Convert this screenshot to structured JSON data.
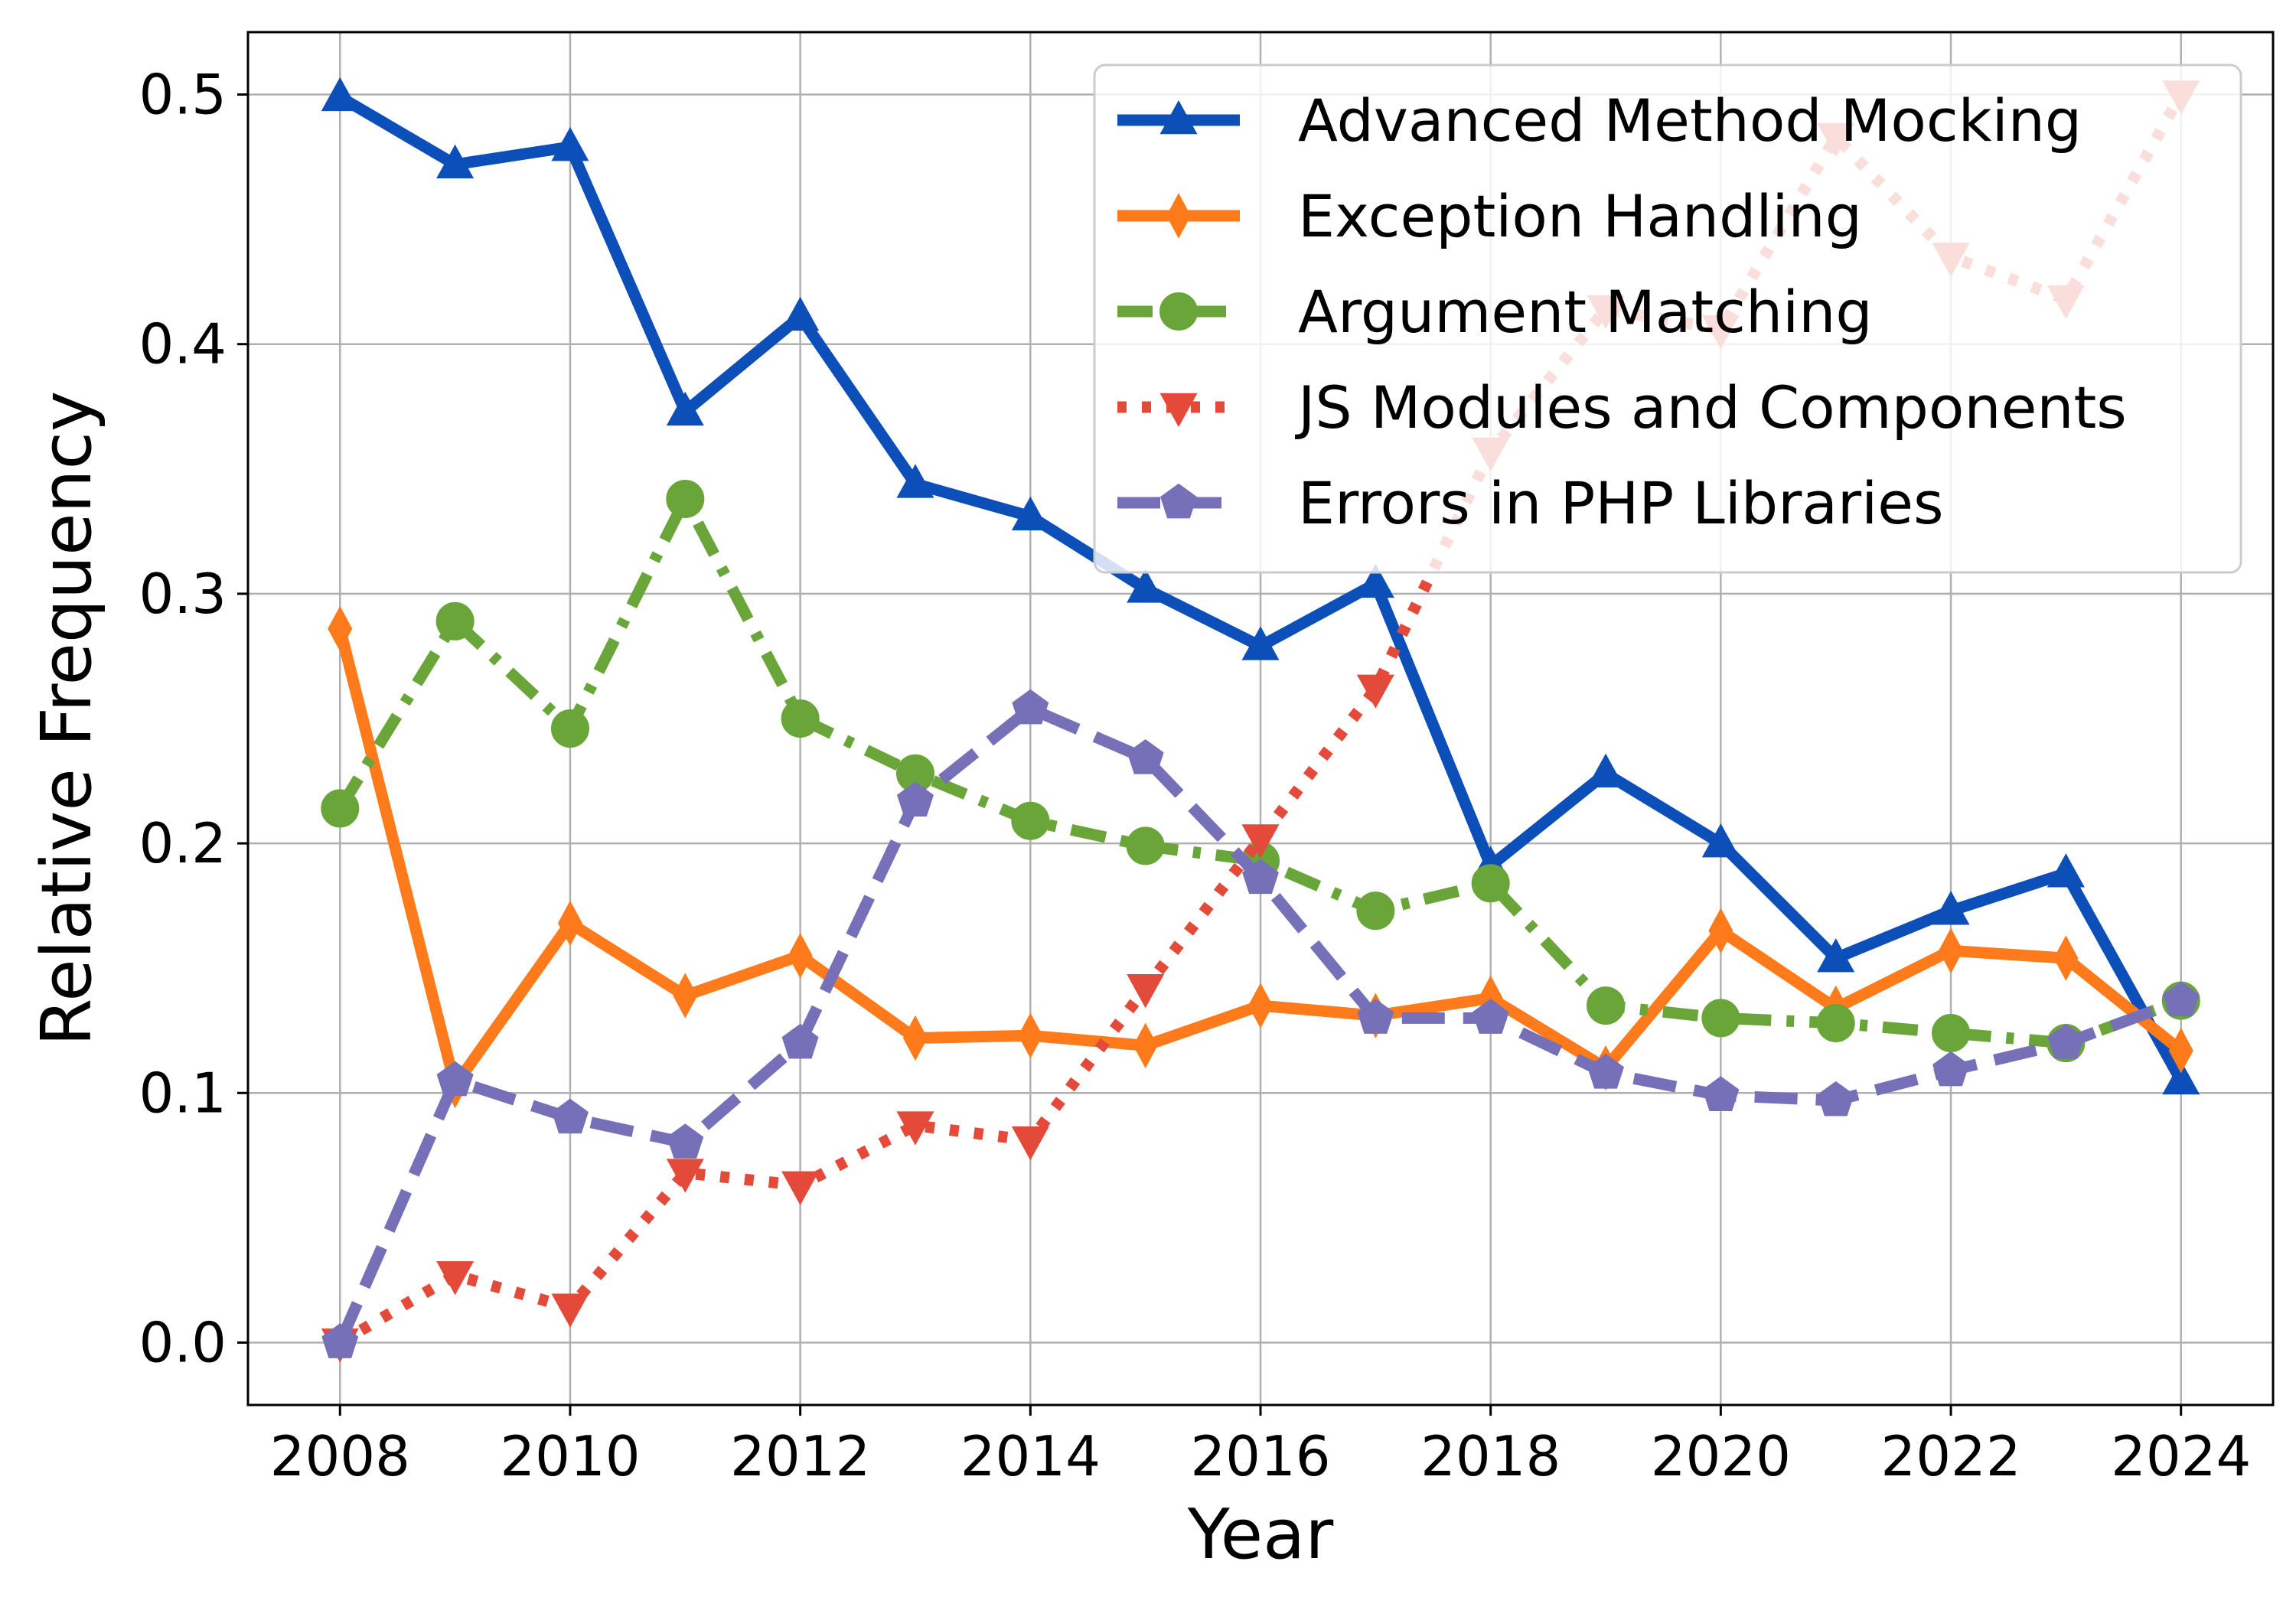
{
  "chart_data": {
    "type": "line",
    "xlabel": "Year",
    "ylabel": "Relative Frequency",
    "xlim": [
      2007.2,
      2024.8
    ],
    "ylim": [
      -0.025,
      0.525
    ],
    "x_ticks": [
      2008,
      2010,
      2012,
      2014,
      2016,
      2018,
      2020,
      2022,
      2024
    ],
    "y_ticks": [
      0.0,
      0.1,
      0.2,
      0.3,
      0.4,
      0.5
    ],
    "y_tick_labels": [
      "0.0",
      "0.1",
      "0.2",
      "0.3",
      "0.4",
      "0.5"
    ],
    "grid": true,
    "legend_position": "top-right",
    "x": [
      2008,
      2009,
      2010,
      2011,
      2012,
      2013,
      2014,
      2015,
      2016,
      2017,
      2018,
      2019,
      2020,
      2021,
      2022,
      2023,
      2024
    ],
    "series": [
      {
        "name": "Advanced Method Mocking",
        "color": "#0d4fb8",
        "line_style": "solid",
        "marker": "triangle-up",
        "values": [
          0.499,
          0.472,
          0.479,
          0.373,
          0.411,
          0.344,
          0.331,
          0.302,
          0.279,
          0.304,
          0.191,
          0.228,
          0.2,
          0.154,
          0.173,
          0.188,
          0.105
        ]
      },
      {
        "name": "Exception Handling",
        "color": "#ff7a1a",
        "line_style": "solid",
        "marker": "diamond",
        "values": [
          0.286,
          0.103,
          0.168,
          0.139,
          0.155,
          0.122,
          0.123,
          0.119,
          0.135,
          0.131,
          0.138,
          0.11,
          0.165,
          0.134,
          0.157,
          0.154,
          0.117
        ]
      },
      {
        "name": "Argument Matching",
        "color": "#6aa53a",
        "line_style": "dash-dot",
        "marker": "circle",
        "values": [
          0.214,
          0.289,
          0.246,
          0.338,
          0.25,
          0.228,
          0.209,
          0.199,
          0.193,
          0.173,
          0.184,
          0.135,
          0.13,
          0.128,
          0.124,
          0.12,
          0.137
        ]
      },
      {
        "name": "JS Modules and Components",
        "color": "#e44a3a",
        "line_style": "dotted",
        "marker": "triangle-down",
        "values": [
          0.0,
          0.027,
          0.014,
          0.068,
          0.063,
          0.087,
          0.081,
          0.142,
          0.202,
          0.262,
          0.357,
          0.414,
          0.406,
          0.483,
          0.435,
          0.418,
          0.5
        ]
      },
      {
        "name": "Errors in PHP Libraries",
        "color": "#7570b8",
        "line_style": "dashed",
        "marker": "pentagon",
        "values": [
          0.0,
          0.105,
          0.09,
          0.08,
          0.12,
          0.217,
          0.254,
          0.234,
          0.186,
          0.13,
          0.13,
          0.108,
          0.099,
          0.097,
          0.109,
          0.12,
          0.137
        ]
      }
    ]
  }
}
